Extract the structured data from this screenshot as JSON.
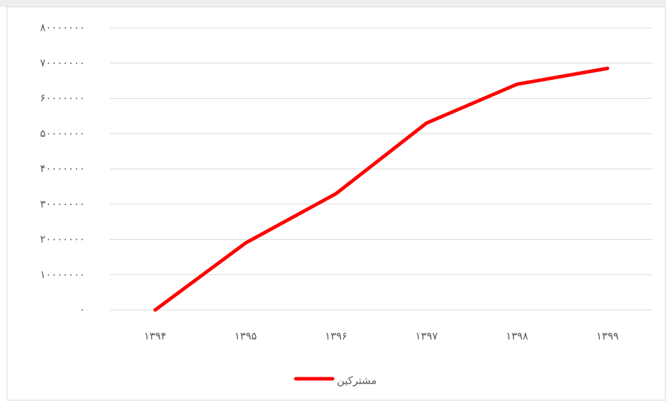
{
  "chart_data": {
    "type": "line",
    "categories": [
      "۱۳۹۴",
      "۱۳۹۵",
      "۱۳۹۶",
      "۱۳۹۷",
      "۱۳۹۸",
      "۱۳۹۹"
    ],
    "series": [
      {
        "name": "مشترکین",
        "color": "#ff0000",
        "values": [
          0,
          19000000,
          33000000,
          53000000,
          64000000,
          68500000
        ]
      }
    ],
    "ylim": [
      0,
      80000000
    ],
    "yticks": [
      {
        "value": 0,
        "label": "۰"
      },
      {
        "value": 10000000,
        "label": "۱۰۰۰۰۰۰۰"
      },
      {
        "value": 20000000,
        "label": "۲۰۰۰۰۰۰۰"
      },
      {
        "value": 30000000,
        "label": "۳۰۰۰۰۰۰۰"
      },
      {
        "value": 40000000,
        "label": "۴۰۰۰۰۰۰۰"
      },
      {
        "value": 50000000,
        "label": "۵۰۰۰۰۰۰۰"
      },
      {
        "value": 60000000,
        "label": "۶۰۰۰۰۰۰۰"
      },
      {
        "value": 70000000,
        "label": "۷۰۰۰۰۰۰۰"
      },
      {
        "value": 80000000,
        "label": "۸۰۰۰۰۰۰۰"
      }
    ],
    "grid": true,
    "legend": "bottom"
  }
}
